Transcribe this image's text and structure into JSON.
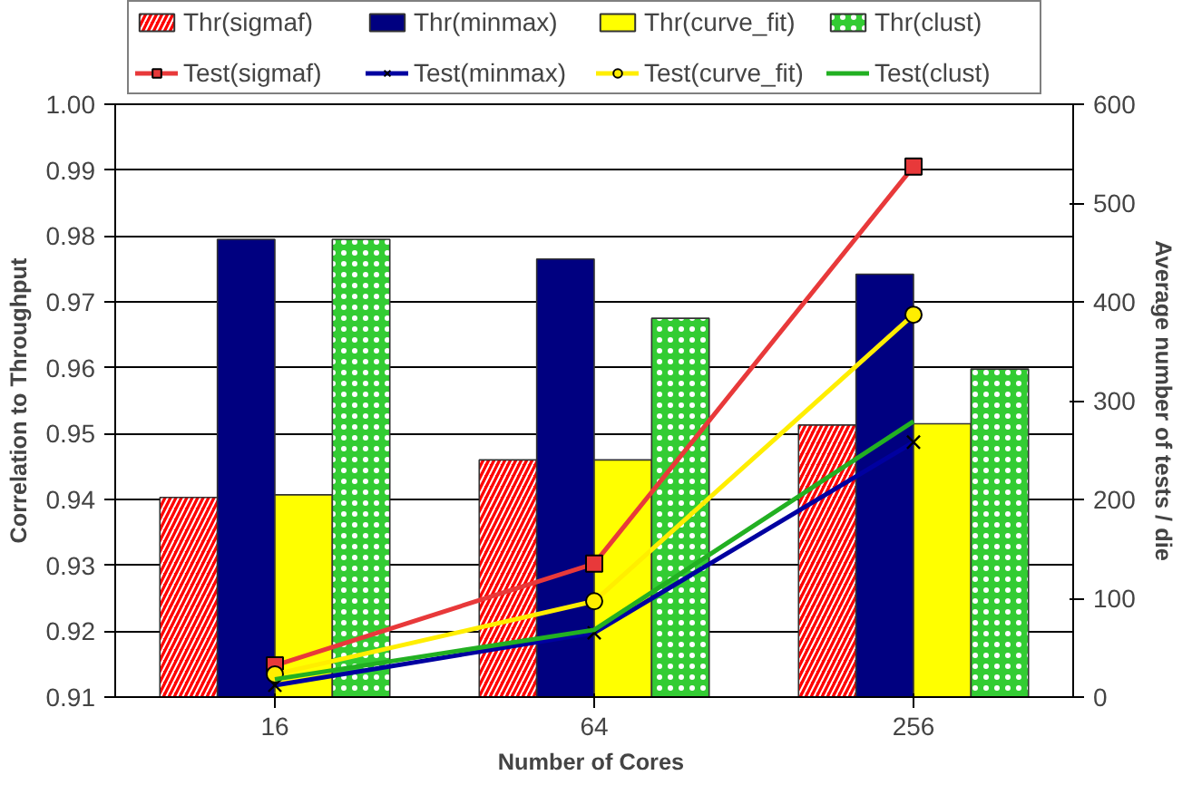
{
  "chart_data": {
    "type": "bar",
    "xlabel": "Number of  Cores",
    "ylabel": "Correlation to Throughput",
    "y2label": "Average number of tests / die",
    "categories": [
      "16",
      "64",
      "256"
    ],
    "ylim": [
      0.91,
      1.0
    ],
    "yticks": [
      0.91,
      0.92,
      0.93,
      0.94,
      0.95,
      0.96,
      0.97,
      0.98,
      0.99,
      {
        "value": 1.0,
        "label": "1.00"
      }
    ],
    "y2lim": [
      0,
      600
    ],
    "y2ticks": [
      0,
      100,
      200,
      300,
      400,
      500,
      600
    ],
    "grid": "y",
    "legend": "top",
    "series": [
      {
        "name": "Thr(sigmaf)",
        "color": "#ff0000",
        "values": [
          0.9403,
          0.946,
          0.9513
        ]
      },
      {
        "name": "Thr(minmax)",
        "color": "#000080",
        "values": [
          0.9795,
          0.9765,
          0.9742
        ]
      },
      {
        "name": "Thr(curve_fit)",
        "color": "#ffff00",
        "values": [
          0.9407,
          0.946,
          0.9515
        ]
      },
      {
        "name": "Thr(clust)",
        "color": "#33cc33",
        "values": [
          0.9795,
          0.9675,
          0.9598
        ]
      },
      {
        "name": "Test(sigmaf)",
        "type": "line",
        "axis": "y2",
        "marker": "square",
        "color": "#e8393a",
        "values": [
          32,
          135,
          537
        ]
      },
      {
        "name": "Test(minmax)",
        "type": "line",
        "axis": "y2",
        "marker": "cross",
        "color": "#0000a0",
        "values": [
          12,
          65,
          258
        ]
      },
      {
        "name": "Test(curve_fit)",
        "type": "line",
        "axis": "y2",
        "marker": "circle",
        "color": "#ffee00",
        "values": [
          23,
          97,
          387
        ]
      },
      {
        "name": "Test(clust)",
        "type": "line",
        "axis": "y2",
        "marker": "none",
        "color": "#22b022",
        "values": [
          18,
          68,
          279
        ]
      }
    ]
  }
}
